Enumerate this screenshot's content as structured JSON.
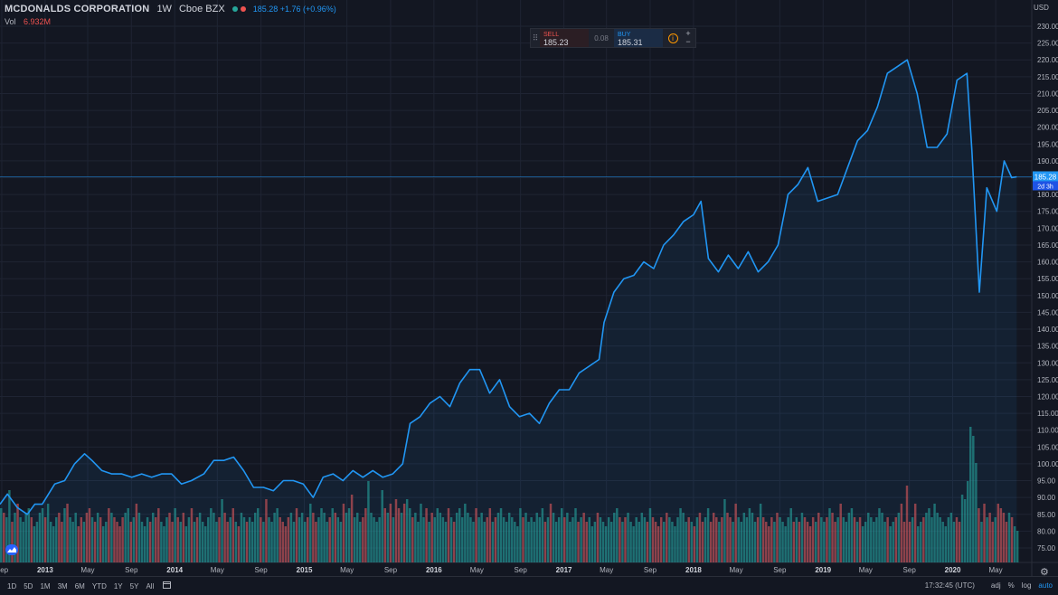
{
  "legend": {
    "name": "MCDONALDS CORPORATION",
    "interval": "1W",
    "exchange": "Cboe BZX",
    "status_dot_colors": [
      "#26a69a",
      "#ef5350"
    ],
    "price_change": "185.28 +1.76 (+0.96%)",
    "vol_label": "Vol",
    "vol_value": "6.932M"
  },
  "trade": {
    "sell_label": "SELL",
    "sell_price": "185.23",
    "spread": "0.08",
    "buy_label": "BUY",
    "buy_price": "185.31",
    "info_glyph": "i",
    "plus": "+",
    "minus": "−",
    "handle_glyph": "⠿"
  },
  "currency": "USD",
  "bottom_bar": {
    "ranges": [
      "1D",
      "5D",
      "1M",
      "3M",
      "6M",
      "YTD",
      "1Y",
      "5Y",
      "All"
    ],
    "clock": "17:32:45 (UTC)",
    "adj": "adj",
    "percent": "%",
    "log": "log",
    "auto": "auto"
  },
  "icons": {
    "calendar": "calendar-icon",
    "settings": "gear-icon",
    "logo": "tradingview-logo-icon"
  },
  "colors": {
    "background": "#131722",
    "line": "#2196f3",
    "vol_up": "#26a69a",
    "vol_down": "#ef5350",
    "grid": "#1f2433",
    "text": "#b2b5be"
  },
  "chart_data": {
    "type": "line",
    "title": "MCDONALDS CORPORATION",
    "y_axis": {
      "min": 75,
      "max": 230,
      "ticks": [
        75,
        80,
        85,
        90,
        95,
        100,
        105,
        110,
        115,
        120,
        125,
        130,
        135,
        140,
        145,
        150,
        155,
        160,
        165,
        170,
        175,
        180,
        185,
        190,
        195,
        200,
        205,
        210,
        215,
        220,
        225,
        230
      ],
      "tick_labels": [
        "75.00",
        "80.00",
        "85.00",
        "90.00",
        "95.00",
        "100.00",
        "105.00",
        "110.00",
        "115.00",
        "120.00",
        "125.00",
        "130.00",
        "135.00",
        "140.00",
        "145.00",
        "150.00",
        "155.00",
        "160.00",
        "165.00",
        "170.00",
        "175.00",
        "180.00",
        "185.00",
        "190.00",
        "195.00",
        "200.00",
        "205.00",
        "210.00",
        "215.00",
        "220.00",
        "225.00",
        "230.00"
      ]
    },
    "x_axis": {
      "tick_dates": [
        "2012-09",
        "2013-01",
        "2013-05",
        "2013-09",
        "2014-01",
        "2014-05",
        "2014-09",
        "2015-01",
        "2015-05",
        "2015-09",
        "2016-01",
        "2016-05",
        "2016-09",
        "2017-01",
        "2017-05",
        "2017-09",
        "2018-01",
        "2018-05",
        "2018-09",
        "2019-01",
        "2019-05",
        "2019-09",
        "2020-01",
        "2020-05"
      ],
      "tick_labels": [
        "Sep",
        "2013",
        "May",
        "Sep",
        "2014",
        "May",
        "Sep",
        "2015",
        "May",
        "Sep",
        "2016",
        "May",
        "Sep",
        "2017",
        "May",
        "Sep",
        "2018",
        "May",
        "Sep",
        "2019",
        "May",
        "Sep",
        "2020",
        "May"
      ],
      "start": "2012-08-27",
      "end": "2020-07-06"
    },
    "last_price": 185.28,
    "last_price_label": "185.28",
    "countdown_label": "2d 3h",
    "series": [
      {
        "name": "MCDONALDS CORPORATION",
        "color": "#2196f3",
        "points": [
          [
            "2012-08-27",
            88
          ],
          [
            "2012-09-17",
            91
          ],
          [
            "2012-10-15",
            87
          ],
          [
            "2012-11-12",
            85
          ],
          [
            "2012-12-03",
            88
          ],
          [
            "2012-12-24",
            88
          ],
          [
            "2013-01-28",
            94
          ],
          [
            "2013-02-25",
            95
          ],
          [
            "2013-03-25",
            100
          ],
          [
            "2013-04-22",
            103
          ],
          [
            "2013-05-13",
            101
          ],
          [
            "2013-06-10",
            98
          ],
          [
            "2013-07-08",
            97
          ],
          [
            "2013-08-05",
            97
          ],
          [
            "2013-09-02",
            96
          ],
          [
            "2013-09-30",
            97
          ],
          [
            "2013-10-28",
            96
          ],
          [
            "2013-11-25",
            97
          ],
          [
            "2013-12-23",
            97
          ],
          [
            "2014-01-20",
            94
          ],
          [
            "2014-02-17",
            95
          ],
          [
            "2014-03-24",
            97
          ],
          [
            "2014-04-21",
            101
          ],
          [
            "2014-05-19",
            101
          ],
          [
            "2014-06-16",
            102
          ],
          [
            "2014-07-14",
            98
          ],
          [
            "2014-08-11",
            93
          ],
          [
            "2014-09-08",
            93
          ],
          [
            "2014-10-06",
            92
          ],
          [
            "2014-11-03",
            95
          ],
          [
            "2014-12-01",
            95
          ],
          [
            "2014-12-29",
            94
          ],
          [
            "2015-01-26",
            90
          ],
          [
            "2015-02-23",
            96
          ],
          [
            "2015-03-23",
            97
          ],
          [
            "2015-04-20",
            95
          ],
          [
            "2015-05-18",
            98
          ],
          [
            "2015-06-15",
            96
          ],
          [
            "2015-07-13",
            98
          ],
          [
            "2015-08-10",
            96
          ],
          [
            "2015-09-07",
            97
          ],
          [
            "2015-10-05",
            100
          ],
          [
            "2015-10-26",
            112
          ],
          [
            "2015-11-23",
            114
          ],
          [
            "2015-12-21",
            118
          ],
          [
            "2016-01-18",
            120
          ],
          [
            "2016-02-15",
            117
          ],
          [
            "2016-03-14",
            124
          ],
          [
            "2016-04-11",
            128
          ],
          [
            "2016-05-09",
            128
          ],
          [
            "2016-06-06",
            121
          ],
          [
            "2016-07-04",
            125
          ],
          [
            "2016-08-01",
            117
          ],
          [
            "2016-08-29",
            114
          ],
          [
            "2016-09-26",
            115
          ],
          [
            "2016-10-24",
            112
          ],
          [
            "2016-11-21",
            118
          ],
          [
            "2016-12-19",
            122
          ],
          [
            "2017-01-16",
            122
          ],
          [
            "2017-02-13",
            127
          ],
          [
            "2017-03-13",
            129
          ],
          [
            "2017-04-10",
            131
          ],
          [
            "2017-04-24",
            142
          ],
          [
            "2017-05-22",
            151
          ],
          [
            "2017-06-19",
            155
          ],
          [
            "2017-07-17",
            156
          ],
          [
            "2017-08-14",
            160
          ],
          [
            "2017-09-11",
            158
          ],
          [
            "2017-10-09",
            165
          ],
          [
            "2017-11-06",
            168
          ],
          [
            "2017-12-04",
            172
          ],
          [
            "2018-01-01",
            174
          ],
          [
            "2018-01-22",
            178
          ],
          [
            "2018-02-12",
            161
          ],
          [
            "2018-03-12",
            157
          ],
          [
            "2018-04-09",
            162
          ],
          [
            "2018-05-07",
            158
          ],
          [
            "2018-06-04",
            163
          ],
          [
            "2018-07-02",
            157
          ],
          [
            "2018-07-30",
            160
          ],
          [
            "2018-08-27",
            165
          ],
          [
            "2018-09-24",
            180
          ],
          [
            "2018-10-22",
            183
          ],
          [
            "2018-11-19",
            188
          ],
          [
            "2018-12-17",
            178
          ],
          [
            "2019-01-14",
            179
          ],
          [
            "2019-02-11",
            180
          ],
          [
            "2019-03-11",
            188
          ],
          [
            "2019-04-08",
            196
          ],
          [
            "2019-05-06",
            199
          ],
          [
            "2019-06-03",
            206
          ],
          [
            "2019-07-01",
            216
          ],
          [
            "2019-07-29",
            218
          ],
          [
            "2019-08-26",
            220
          ],
          [
            "2019-09-23",
            210
          ],
          [
            "2019-10-21",
            194
          ],
          [
            "2019-11-18",
            194
          ],
          [
            "2019-12-16",
            198
          ],
          [
            "2020-01-13",
            214
          ],
          [
            "2020-02-10",
            216
          ],
          [
            "2020-02-24",
            193
          ],
          [
            "2020-03-16",
            151
          ],
          [
            "2020-04-06",
            182
          ],
          [
            "2020-05-04",
            175
          ],
          [
            "2020-05-25",
            190
          ],
          [
            "2020-06-15",
            185
          ],
          [
            "2020-06-29",
            185.28
          ]
        ]
      }
    ],
    "volume": {
      "name": "Vol",
      "last_value_label": "6.932M",
      "scale_max_millions": 32,
      "values_millions": [
        12,
        11,
        10,
        16,
        9,
        11,
        13,
        10,
        9,
        11,
        12,
        10,
        8,
        9,
        11,
        12,
        10,
        13,
        9,
        8,
        10,
        11,
        9,
        12,
        13,
        10,
        9,
        11,
        8,
        10,
        9,
        11,
        12,
        10,
        9,
        11,
        10,
        8,
        9,
        12,
        11,
        10,
        9,
        8,
        10,
        11,
        12,
        9,
        10,
        13,
        11,
        9,
        8,
        10,
        9,
        11,
        10,
        12,
        9,
        8,
        10,
        11,
        9,
        12,
        10,
        9,
        11,
        8,
        10,
        12,
        9,
        10,
        11,
        9,
        8,
        10,
        12,
        11,
        9,
        10,
        14,
        11,
        9,
        10,
        12,
        9,
        8,
        11,
        10,
        9,
        10,
        9,
        11,
        12,
        10,
        9,
        14,
        10,
        9,
        11,
        12,
        10,
        9,
        8,
        10,
        11,
        9,
        12,
        10,
        11,
        9,
        10,
        13,
        11,
        9,
        10,
        12,
        11,
        9,
        10,
        12,
        11,
        10,
        9,
        13,
        11,
        12,
        15,
        10,
        11,
        9,
        10,
        12,
        18,
        11,
        10,
        9,
        10,
        16,
        12,
        11,
        13,
        10,
        14,
        12,
        11,
        13,
        14,
        12,
        10,
        11,
        9,
        13,
        10,
        12,
        9,
        11,
        10,
        12,
        11,
        10,
        9,
        12,
        10,
        9,
        11,
        12,
        10,
        13,
        11,
        10,
        9,
        12,
        10,
        11,
        9,
        10,
        12,
        9,
        10,
        11,
        12,
        10,
        9,
        11,
        10,
        9,
        8,
        12,
        10,
        11,
        9,
        10,
        9,
        11,
        10,
        12,
        9,
        10,
        13,
        11,
        9,
        10,
        12,
        10,
        11,
        9,
        10,
        12,
        9,
        10,
        11,
        9,
        10,
        8,
        9,
        11,
        10,
        9,
        8,
        10,
        9,
        11,
        12,
        10,
        9,
        10,
        11,
        9,
        8,
        10,
        9,
        11,
        10,
        9,
        12,
        10,
        9,
        8,
        10,
        9,
        11,
        10,
        9,
        8,
        10,
        12,
        11,
        9,
        10,
        9,
        8,
        10,
        11,
        9,
        10,
        12,
        9,
        11,
        10,
        9,
        10,
        14,
        11,
        10,
        9,
        13,
        10,
        9,
        11,
        10,
        12,
        11,
        9,
        10,
        13,
        10,
        9,
        8,
        10,
        9,
        11,
        10,
        9,
        8,
        10,
        12,
        9,
        10,
        9,
        11,
        10,
        9,
        8,
        10,
        9,
        11,
        10,
        9,
        10,
        12,
        11,
        9,
        10,
        13,
        10,
        9,
        11,
        12,
        10,
        9,
        10,
        8,
        9,
        11,
        10,
        9,
        10,
        12,
        11,
        9,
        10,
        8,
        9,
        10,
        11,
        13,
        9,
        17,
        9,
        10,
        13,
        8,
        9,
        10,
        11,
        12,
        10,
        13,
        11,
        10,
        9,
        8,
        10,
        11,
        9,
        10,
        9,
        15,
        14,
        18,
        30,
        28,
        22,
        12,
        9,
        13,
        10,
        11,
        9,
        10,
        13,
        12,
        11,
        9,
        11,
        10,
        8,
        7
      ]
    }
  }
}
